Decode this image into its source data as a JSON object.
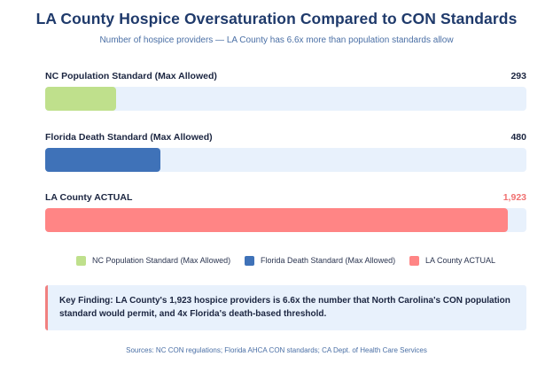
{
  "chart_data": {
    "type": "bar",
    "orientation": "horizontal",
    "title": "LA County Hospice Oversaturation Compared to CON Standards",
    "subtitle": "Number of hospice providers — LA County has 6.6x more than population standards allow",
    "xlim": [
      0,
      2000
    ],
    "bars": [
      {
        "label": "NC Population Standard (Max Allowed)",
        "value": 293,
        "display": "293",
        "color": "#bfe08c",
        "value_color": "#1b2540"
      },
      {
        "label": "Florida Death Standard (Max Allowed)",
        "value": 480,
        "display": "480",
        "color": "#3f72b8",
        "value_color": "#1b2540"
      },
      {
        "label": "LA County ACTUAL",
        "value": 1923,
        "display": "1,923",
        "color": "#ff8585",
        "value_color": "#f07070"
      }
    ],
    "legend": [
      {
        "label": "NC Population Standard (Max Allowed)",
        "color": "#bfe08c"
      },
      {
        "label": "Florida Death Standard (Max Allowed)",
        "color": "#3f72b8"
      },
      {
        "label": "LA County ACTUAL",
        "color": "#ff8585"
      }
    ]
  },
  "key_finding": "Key Finding: LA County's 1,923 hospice providers is 6.6x the number that North Carolina's CON population standard would permit, and 4x Florida's death-based threshold.",
  "sources": "Sources: NC CON regulations; Florida AHCA CON standards; CA Dept. of Health Care Services"
}
